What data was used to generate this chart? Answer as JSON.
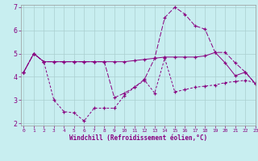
{
  "xlabel": "Windchill (Refroidissement éolien,°C)",
  "background_color": "#c8eef0",
  "grid_color": "#aacfcf",
  "line_color": "#880080",
  "hours": [
    0,
    1,
    2,
    3,
    4,
    5,
    6,
    7,
    8,
    9,
    10,
    11,
    12,
    13,
    14,
    15,
    16,
    17,
    18,
    19,
    20,
    21,
    22,
    23
  ],
  "line1": [
    4.2,
    5.0,
    4.65,
    3.0,
    2.5,
    2.45,
    2.1,
    2.65,
    2.65,
    2.65,
    3.2,
    3.55,
    3.85,
    3.3,
    4.8,
    3.35,
    3.45,
    3.55,
    3.6,
    3.65,
    3.75,
    3.8,
    3.85,
    3.75
  ],
  "line2": [
    4.2,
    5.0,
    4.65,
    4.65,
    4.65,
    4.65,
    4.65,
    4.65,
    4.65,
    4.65,
    4.65,
    4.7,
    4.75,
    4.8,
    4.85,
    4.85,
    4.85,
    4.85,
    4.9,
    5.05,
    4.6,
    4.05,
    4.2,
    3.7
  ],
  "line3": [
    4.2,
    5.0,
    4.65,
    4.65,
    4.65,
    4.65,
    4.65,
    4.65,
    4.65,
    3.1,
    3.3,
    3.55,
    3.9,
    4.8,
    6.55,
    7.0,
    6.7,
    6.2,
    6.05,
    5.05,
    5.05,
    4.6,
    4.2,
    3.7
  ],
  "ylim": [
    1.9,
    7.1
  ],
  "xlim": [
    -0.3,
    23
  ],
  "yticks": [
    2,
    3,
    4,
    5,
    6,
    7
  ],
  "xticks": [
    0,
    1,
    2,
    3,
    4,
    5,
    6,
    7,
    8,
    9,
    10,
    11,
    12,
    13,
    14,
    15,
    16,
    17,
    18,
    19,
    20,
    21,
    22,
    23
  ]
}
